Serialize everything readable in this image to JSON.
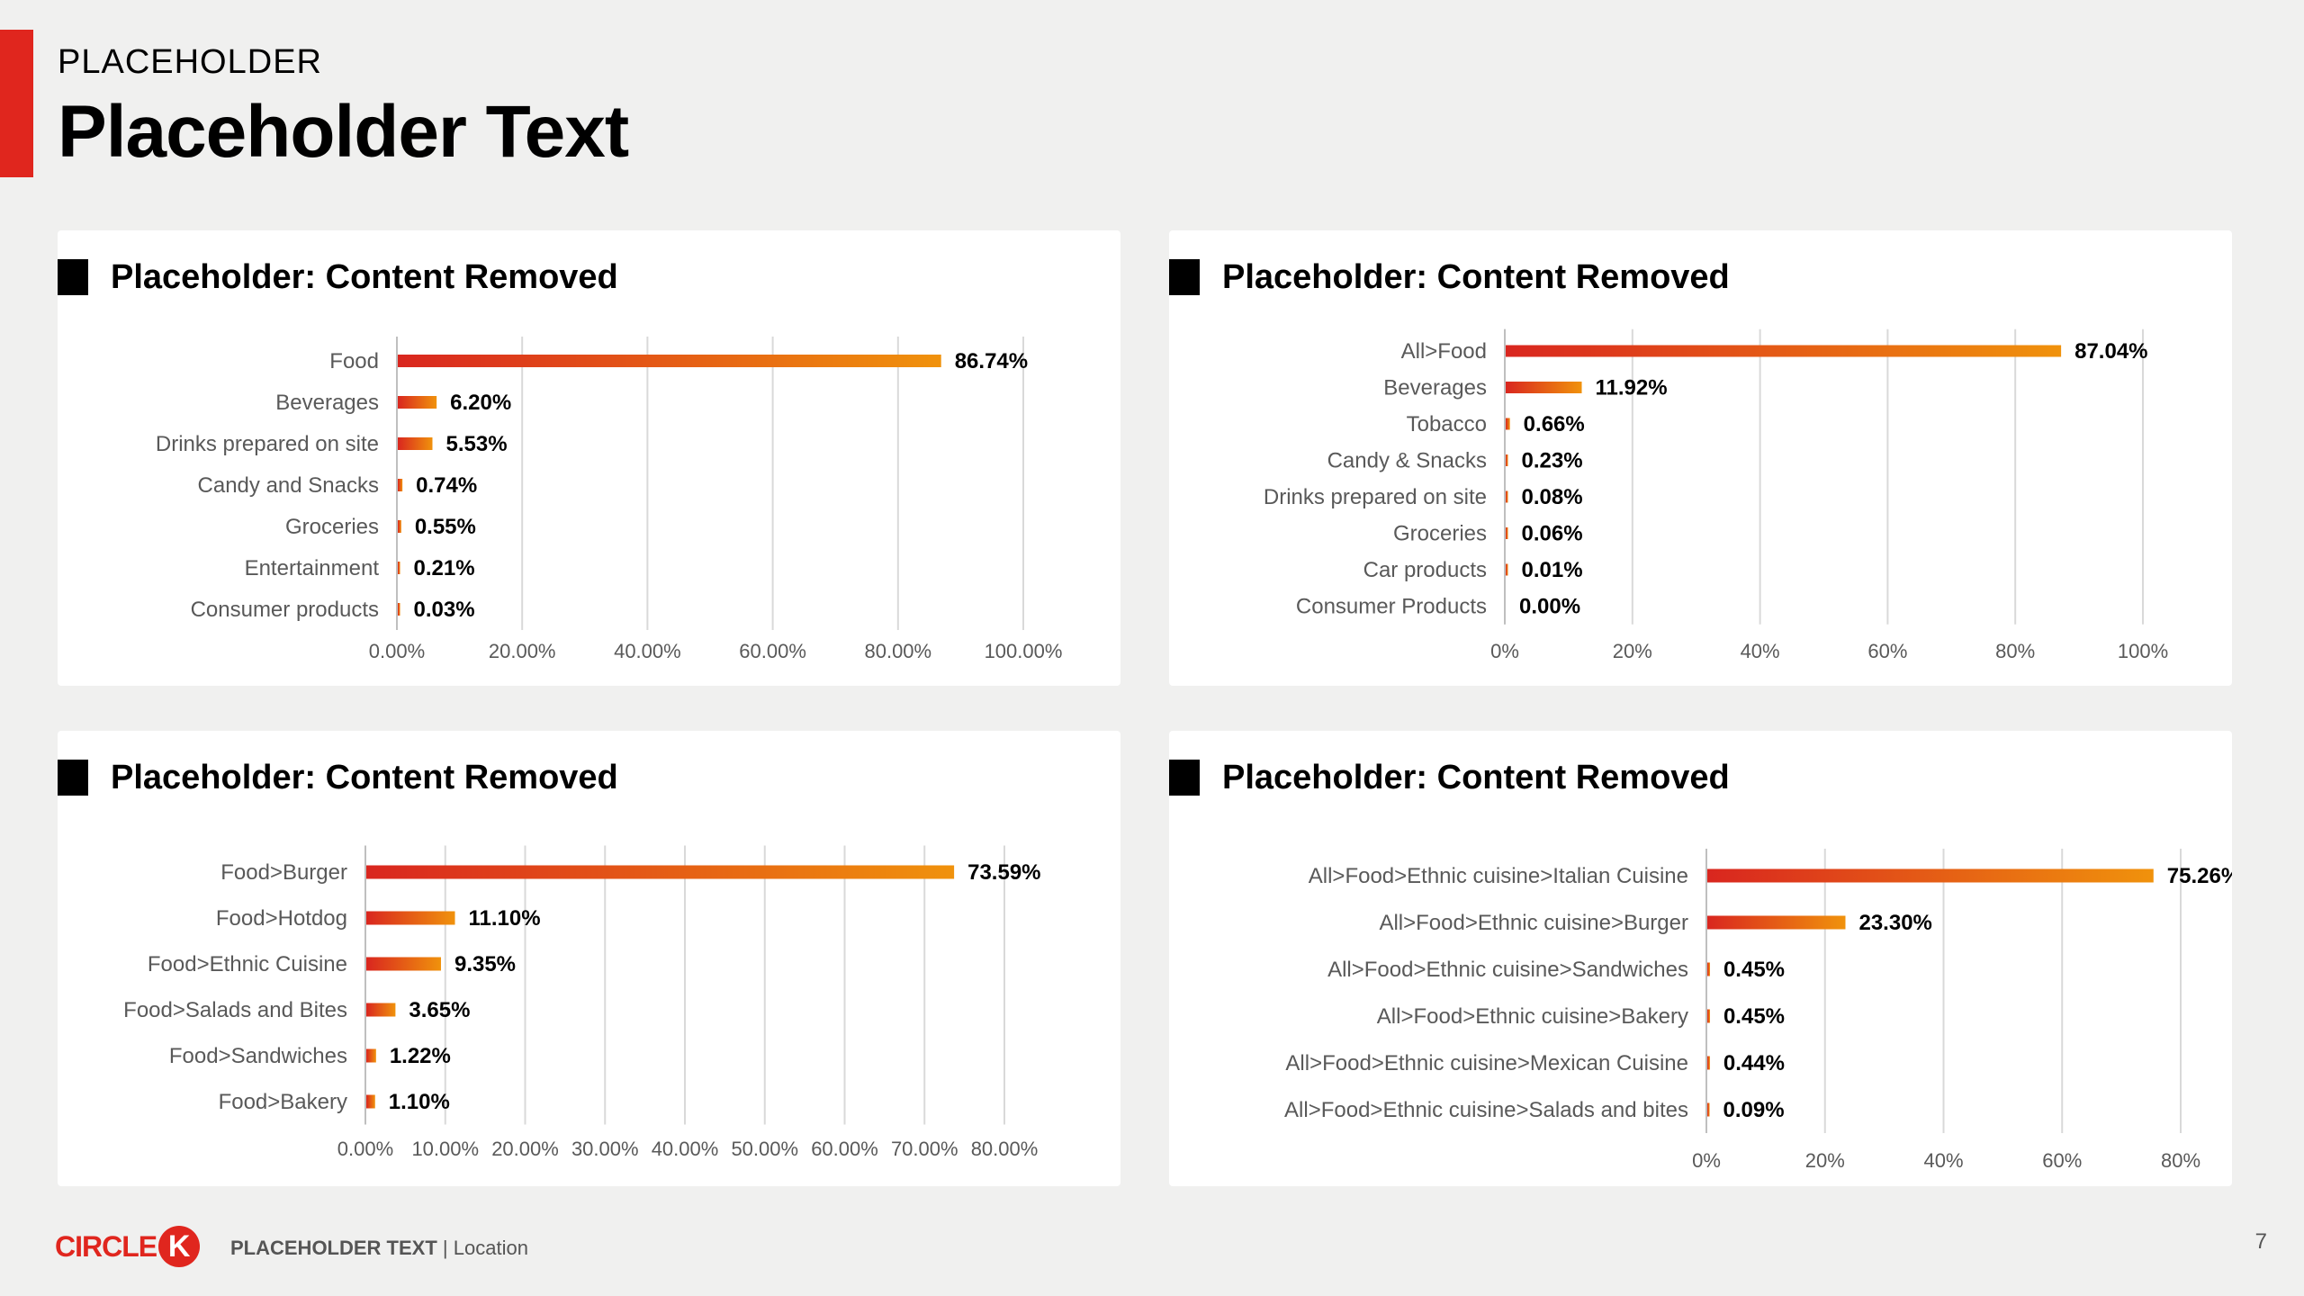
{
  "header": {
    "pre_title": "PLACEHOLDER",
    "title": "Placeholder Text"
  },
  "footer": {
    "logo_text": "CIRCLE",
    "logo_letter": "K",
    "label_bold": "PLACEHOLDER TEXT",
    "separator": "|",
    "label_location": "Location",
    "page_number": "7"
  },
  "colors": {
    "accent": "#e0261e",
    "bar_start": "#d9261f",
    "bar_end": "#f0920c"
  },
  "chart_data": [
    {
      "type": "bar",
      "orientation": "horizontal",
      "title": "Placeholder: Content Removed",
      "categories": [
        "Food",
        "Beverages",
        "Drinks prepared on site",
        "Candy and Snacks",
        "Groceries",
        "Entertainment",
        "Consumer products"
      ],
      "values": [
        86.74,
        6.2,
        5.53,
        0.74,
        0.55,
        0.21,
        0.03
      ],
      "value_labels": [
        "86.74%",
        "6.20%",
        "5.53%",
        "0.74%",
        "0.55%",
        "0.21%",
        "0.03%"
      ],
      "xlim": [
        0,
        100
      ],
      "ticks": [
        0,
        20,
        40,
        60,
        80,
        100
      ],
      "tick_labels": [
        "0.00%",
        "20.00%",
        "40.00%",
        "60.00%",
        "80.00%",
        "100.00%"
      ],
      "grid": true
    },
    {
      "type": "bar",
      "orientation": "horizontal",
      "title": "Placeholder: Content Removed",
      "categories": [
        "All>Food",
        "Beverages",
        "Tobacco",
        "Candy & Snacks",
        "Drinks prepared on site",
        "Groceries",
        "Car products",
        "Consumer Products"
      ],
      "values": [
        87.04,
        11.92,
        0.66,
        0.23,
        0.08,
        0.06,
        0.01,
        0.0
      ],
      "value_labels": [
        "87.04%",
        "11.92%",
        "0.66%",
        "0.23%",
        "0.08%",
        "0.06%",
        "0.01%",
        "0.00%"
      ],
      "xlim": [
        0,
        100
      ],
      "ticks": [
        0,
        20,
        40,
        60,
        80,
        100
      ],
      "tick_labels": [
        "0%",
        "20%",
        "40%",
        "60%",
        "80%",
        "100%"
      ],
      "grid": true
    },
    {
      "type": "bar",
      "orientation": "horizontal",
      "title": "Placeholder: Content Removed",
      "categories": [
        "Food>Burger",
        "Food>Hotdog",
        "Food>Ethnic Cuisine",
        "Food>Salads and Bites",
        "Food>Sandwiches",
        "Food>Bakery"
      ],
      "values": [
        73.59,
        11.1,
        9.35,
        3.65,
        1.22,
        1.1
      ],
      "value_labels": [
        "73.59%",
        "11.10%",
        "9.35%",
        "3.65%",
        "1.22%",
        "1.10%"
      ],
      "xlim": [
        0,
        80
      ],
      "ticks": [
        0,
        10,
        20,
        30,
        40,
        50,
        60,
        70,
        80
      ],
      "tick_labels": [
        "0.00%",
        "10.00%",
        "20.00%",
        "30.00%",
        "40.00%",
        "50.00%",
        "60.00%",
        "70.00%",
        "80.00%"
      ],
      "grid": true
    },
    {
      "type": "bar",
      "orientation": "horizontal",
      "title": "Placeholder: Content Removed",
      "categories": [
        "All>Food>Ethnic cuisine>Italian  Cuisine",
        "All>Food>Ethnic cuisine>Burger",
        "All>Food>Ethnic cuisine>Sandwiches",
        "All>Food>Ethnic cuisine>Bakery",
        "All>Food>Ethnic cuisine>Mexican Cuisine",
        "All>Food>Ethnic cuisine>Salads and bites"
      ],
      "values": [
        75.26,
        23.3,
        0.45,
        0.45,
        0.44,
        0.09
      ],
      "value_labels": [
        "75.26%",
        "23.30%",
        "0.45%",
        "0.45%",
        "0.44%",
        "0.09%"
      ],
      "xlim": [
        0,
        80
      ],
      "ticks": [
        0,
        20,
        40,
        60,
        80
      ],
      "tick_labels": [
        "0%",
        "20%",
        "40%",
        "60%",
        "80%"
      ],
      "grid": true
    }
  ]
}
